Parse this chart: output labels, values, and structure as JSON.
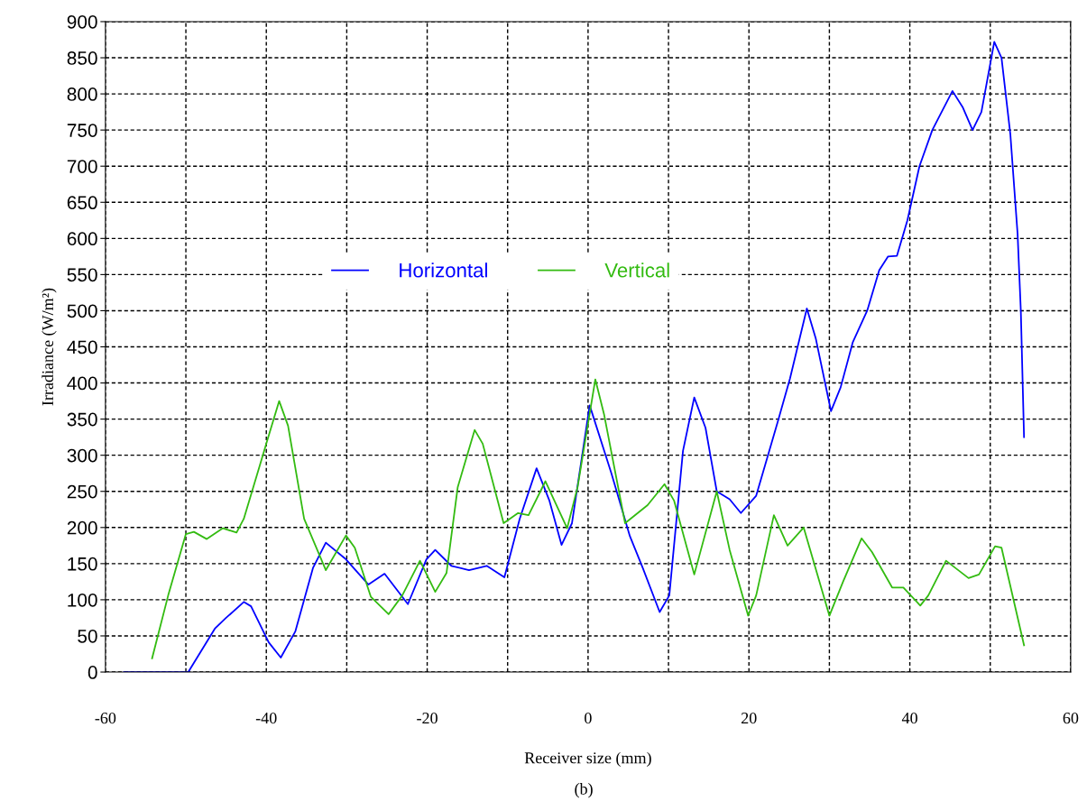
{
  "chart_data": {
    "type": "line",
    "xlabel": "Receiver size (mm)",
    "ylabel": "Irradiance (W/m²)",
    "annotations": [
      "(b)"
    ],
    "xlim": [
      -60,
      60
    ],
    "xticks": [
      -60,
      {
        "value": -50,
        "label": null
      },
      -40,
      {
        "value": -30,
        "label": null
      },
      -20,
      {
        "value": -10,
        "label": null
      },
      0,
      {
        "value": 10,
        "label": null
      },
      20,
      {
        "value": 30,
        "label": null
      },
      40,
      {
        "value": 50,
        "label": null
      },
      60
    ],
    "ylim": [
      0,
      900
    ],
    "yticks": [
      0,
      50,
      100,
      150,
      200,
      250,
      300,
      350,
      400,
      450,
      500,
      550,
      600,
      650,
      700,
      750,
      800,
      850,
      900
    ],
    "grid": true,
    "legend": "center",
    "marker": "none",
    "series": [
      {
        "name": "Horizontal",
        "color": "#0000ff",
        "x": [
          -57.7,
          -49.7,
          -46.4,
          -45.0,
          -42.8,
          -41.9,
          -39.7,
          -38.2,
          -36.4,
          -34.2,
          -32.6,
          -30.1,
          -27.3,
          -25.3,
          -22.4,
          -20.1,
          -19.0,
          -17.0,
          -14.8,
          -12.6,
          -10.4,
          -8.5,
          -6.4,
          -4.8,
          -3.3,
          -2.0,
          0.2,
          2.9,
          5.2,
          6.8,
          8.9,
          10.1,
          11.8,
          13.2,
          14.6,
          16.0,
          17.6,
          19.0,
          20.9,
          23.6,
          25.1,
          27.2,
          28.3,
          30.2,
          31.4,
          32.9,
          34.7,
          36.2,
          37.3,
          38.4,
          39.7,
          41.2,
          42.8,
          45.3,
          46.6,
          47.8,
          48.9,
          50.5,
          51.4,
          52.5,
          53.4,
          53.8,
          54.2
        ],
        "values": [
          0,
          0,
          60,
          75,
          97,
          91,
          41,
          20,
          56,
          144,
          179,
          156,
          121,
          136,
          94,
          156,
          169,
          147,
          141,
          147,
          131,
          212,
          282,
          237,
          176,
          206,
          369,
          275,
          188,
          144,
          83,
          106,
          306,
          380,
          338,
          250,
          239,
          220,
          244,
          347,
          406,
          503,
          462,
          361,
          394,
          456,
          500,
          556,
          575,
          576,
          625,
          700,
          750,
          804,
          781,
          750,
          775,
          872,
          850,
          744,
          606,
          500,
          325
        ]
      },
      {
        "name": "Vertical",
        "color": "#33bb11",
        "x": [
          -54.2,
          -52.2,
          -50.0,
          -49.0,
          -47.4,
          -45.4,
          -43.7,
          -42.8,
          -40.0,
          -38.4,
          -37.3,
          -35.3,
          -32.6,
          -30.1,
          -29.0,
          -27.0,
          -24.8,
          -23.1,
          -20.9,
          -19.0,
          -17.6,
          -16.2,
          -14.1,
          -13.1,
          -10.5,
          -8.7,
          -7.4,
          -5.3,
          -2.6,
          -1.3,
          0.9,
          2.0,
          4.6,
          7.4,
          9.5,
          10.7,
          13.2,
          16.0,
          17.6,
          19.9,
          20.9,
          23.1,
          24.8,
          26.8,
          30.0,
          31.7,
          34.0,
          35.3,
          37.8,
          39.2,
          41.3,
          42.3,
          44.5,
          47.3,
          48.6,
          50.6,
          51.4,
          54.2
        ],
        "values": [
          19,
          106,
          191,
          194,
          184,
          199,
          193,
          212,
          316,
          375,
          341,
          212,
          141,
          189,
          172,
          104,
          80,
          106,
          154,
          111,
          137,
          256,
          335,
          316,
          206,
          220,
          217,
          264,
          199,
          256,
          405,
          356,
          206,
          231,
          260,
          237,
          135,
          250,
          169,
          78,
          106,
          217,
          175,
          200,
          78,
          125,
          185,
          166,
          117,
          117,
          92,
          106,
          154,
          130,
          135,
          174,
          172,
          37
        ]
      }
    ]
  }
}
